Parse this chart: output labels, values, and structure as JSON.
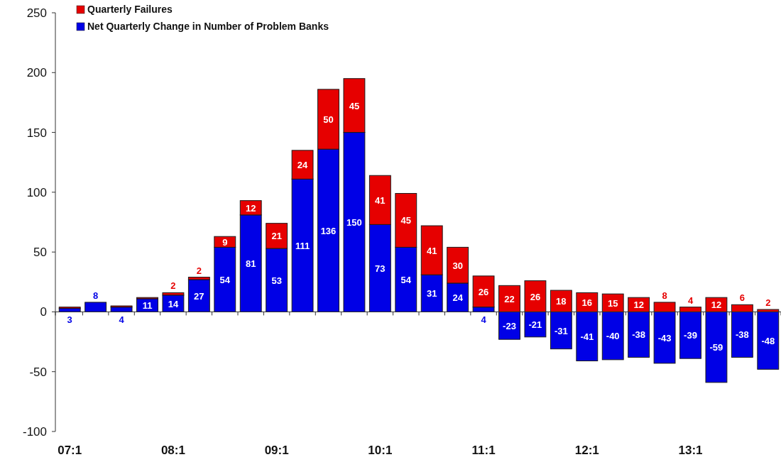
{
  "chart_data": {
    "type": "bar",
    "stacked": true,
    "categories": [
      "07:1",
      null,
      null,
      null,
      "08:1",
      null,
      null,
      null,
      "09:1",
      null,
      null,
      null,
      "10:1",
      null,
      null,
      null,
      "11:1",
      null,
      null,
      null,
      "12:1",
      null,
      null,
      null,
      "13:1",
      null,
      null,
      null
    ],
    "series": [
      {
        "name": "Net Quarterly Change in Number of Problem Banks",
        "color": "#0000e6",
        "values": [
          3,
          8,
          4,
          11,
          14,
          27,
          54,
          81,
          53,
          111,
          136,
          150,
          73,
          54,
          31,
          24,
          4,
          -23,
          -21,
          -31,
          -41,
          -40,
          -38,
          -43,
          -39,
          -59,
          -38,
          -48
        ],
        "value_labels": [
          "3",
          "8",
          "4",
          "11",
          "14",
          "27",
          "54",
          "81",
          "53",
          "111",
          "136",
          "150",
          "73",
          "54",
          "31",
          "24",
          "4",
          "-23",
          "-21",
          "-31",
          "-41",
          "-40",
          "-38",
          "-43",
          "-39",
          "-59",
          "-38",
          "-48"
        ]
      },
      {
        "name": "Quarterly Failures",
        "color": "#e60000",
        "values": [
          1,
          0,
          1,
          1,
          2,
          2,
          9,
          12,
          21,
          24,
          50,
          45,
          41,
          45,
          41,
          30,
          26,
          22,
          26,
          18,
          16,
          15,
          12,
          8,
          4,
          12,
          6,
          2
        ],
        "value_labels": [
          null,
          null,
          null,
          null,
          "2",
          "2",
          "9",
          "12",
          "21",
          "24",
          "50",
          "45",
          "41",
          "45",
          "41",
          "30",
          "26",
          "22",
          "26",
          "18",
          "16",
          "15",
          "12",
          "8",
          "4",
          "12",
          "6",
          "2"
        ]
      }
    ],
    "ylim": [
      -100,
      250
    ],
    "yticks": [
      -100,
      -50,
      0,
      50,
      100,
      150,
      200,
      250
    ],
    "legend": "top left"
  }
}
